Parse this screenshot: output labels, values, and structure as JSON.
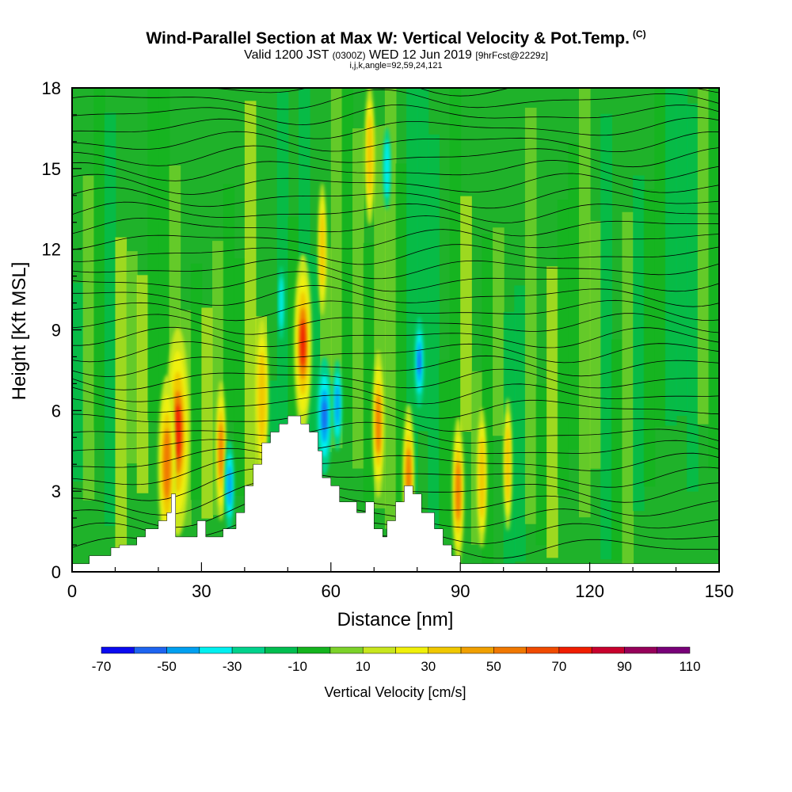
{
  "header": {
    "title": "Wind-Parallel Section at Max W: Vertical Velocity & Pot.Temp.",
    "copyright": "(C)",
    "subtitle_main": "Valid 1200 JST",
    "subtitle_utc": "(0300Z)",
    "subtitle_date": "WED 12 Jun 2019",
    "subtitle_fcst": "[9hrFcst@2229z]",
    "subtitle2": "i,j,k,angle=92,59,24,121"
  },
  "chart_data": {
    "type": "heatmap",
    "xlabel": "Distance [nm]",
    "ylabel": "Height [Kft MSL]",
    "xlim": [
      0,
      150
    ],
    "ylim": [
      0,
      18
    ],
    "xticks": [
      "0",
      "30",
      "60",
      "90",
      "120",
      "150"
    ],
    "yticks": [
      "0",
      "3",
      "6",
      "9",
      "12",
      "15",
      "18"
    ],
    "terrain": [
      [
        0,
        0.3
      ],
      [
        4,
        0.3
      ],
      [
        4,
        0.6
      ],
      [
        9,
        0.6
      ],
      [
        9,
        0.9
      ],
      [
        11,
        0.9
      ],
      [
        11,
        1.0
      ],
      [
        15,
        1.0
      ],
      [
        15,
        1.3
      ],
      [
        17,
        1.3
      ],
      [
        17,
        1.6
      ],
      [
        20,
        1.6
      ],
      [
        20,
        1.9
      ],
      [
        22,
        1.9
      ],
      [
        22,
        2.2
      ],
      [
        23,
        2.2
      ],
      [
        23,
        2.9
      ],
      [
        24,
        2.9
      ],
      [
        24,
        1.3
      ],
      [
        29,
        1.3
      ],
      [
        29,
        1.9
      ],
      [
        31,
        1.9
      ],
      [
        31,
        1.3
      ],
      [
        35,
        1.3
      ],
      [
        35,
        1.6
      ],
      [
        38,
        1.6
      ],
      [
        38,
        2.2
      ],
      [
        40,
        2.2
      ],
      [
        40,
        3.2
      ],
      [
        42,
        3.2
      ],
      [
        42,
        4.0
      ],
      [
        44,
        4.0
      ],
      [
        44,
        4.8
      ],
      [
        46,
        4.8
      ],
      [
        46,
        5.2
      ],
      [
        48,
        5.2
      ],
      [
        48,
        5.5
      ],
      [
        50,
        5.5
      ],
      [
        50,
        5.8
      ],
      [
        53,
        5.8
      ],
      [
        53,
        5.5
      ],
      [
        55,
        5.5
      ],
      [
        55,
        5.2
      ],
      [
        57,
        5.2
      ],
      [
        57,
        4.5
      ],
      [
        58,
        4.5
      ],
      [
        58,
        3.5
      ],
      [
        60,
        3.5
      ],
      [
        60,
        3.2
      ],
      [
        62,
        3.2
      ],
      [
        62,
        2.6
      ],
      [
        66,
        2.6
      ],
      [
        66,
        2.2
      ],
      [
        68,
        2.2
      ],
      [
        68,
        2.6
      ],
      [
        70,
        2.6
      ],
      [
        70,
        1.6
      ],
      [
        72,
        1.6
      ],
      [
        72,
        1.3
      ],
      [
        73,
        1.3
      ],
      [
        73,
        1.9
      ],
      [
        75,
        1.9
      ],
      [
        75,
        2.6
      ],
      [
        77,
        2.6
      ],
      [
        77,
        3.2
      ],
      [
        79,
        3.2
      ],
      [
        79,
        2.9
      ],
      [
        81,
        2.9
      ],
      [
        81,
        2.2
      ],
      [
        84,
        2.2
      ],
      [
        84,
        1.6
      ],
      [
        86,
        1.6
      ],
      [
        86,
        1.0
      ],
      [
        88,
        1.0
      ],
      [
        88,
        0.6
      ],
      [
        90,
        0.6
      ],
      [
        90,
        0.3
      ],
      [
        150,
        0.3
      ]
    ],
    "colorbar": {
      "label": "Vertical Velocity [cm/s]",
      "tick_labels": [
        "-70",
        "-50",
        "-30",
        "-10",
        "10",
        "30",
        "50",
        "70",
        "90",
        "110"
      ],
      "levels": [
        -70,
        -60,
        -50,
        -40,
        -30,
        -20,
        -10,
        0,
        10,
        20,
        30,
        40,
        50,
        60,
        70,
        80,
        90,
        100,
        110
      ],
      "colors": [
        "#0a0af0",
        "#1e64f0",
        "#00a0f0",
        "#00f0f0",
        "#00d28c",
        "#00be50",
        "#14b41e",
        "#7cd22a",
        "#c8e61e",
        "#f0f00a",
        "#f0c800",
        "#f0a000",
        "#f07800",
        "#f04b00",
        "#f01e00",
        "#c8002d",
        "#96005a",
        "#780078"
      ]
    },
    "updrafts": [
      {
        "x": 24.5,
        "y": 5.2,
        "w": 30,
        "level": 3
      },
      {
        "x": 22,
        "y": 4.0,
        "w": 22,
        "level": 2
      },
      {
        "x": 34.5,
        "y": 4.5,
        "w": 12,
        "level": 2
      },
      {
        "x": 44,
        "y": 6.5,
        "w": 16,
        "level": 1
      },
      {
        "x": 53.5,
        "y": 8.5,
        "w": 22,
        "level": 3
      },
      {
        "x": 58,
        "y": 12.0,
        "w": 10,
        "level": 1
      },
      {
        "x": 71,
        "y": 5.5,
        "w": 14,
        "level": 2
      },
      {
        "x": 78,
        "y": 3.5,
        "w": 14,
        "level": 2
      },
      {
        "x": 89.5,
        "y": 3.0,
        "w": 14,
        "level": 2
      },
      {
        "x": 95,
        "y": 3.5,
        "w": 12,
        "level": 1
      },
      {
        "x": 69,
        "y": 15.5,
        "w": 12,
        "level": 1
      },
      {
        "x": 101,
        "y": 4.0,
        "w": 10,
        "level": 1
      }
    ],
    "downdrafts": [
      {
        "x": 36.5,
        "y": 3.2,
        "w": 10,
        "level": 2
      },
      {
        "x": 58.5,
        "y": 5.8,
        "w": 16,
        "level": 3
      },
      {
        "x": 61.5,
        "y": 6.2,
        "w": 10,
        "level": 2
      },
      {
        "x": 80.5,
        "y": 7.8,
        "w": 10,
        "level": 3
      },
      {
        "x": 73,
        "y": 15.0,
        "w": 8,
        "level": 1
      },
      {
        "x": 48.5,
        "y": 10.0,
        "w": 6,
        "level": 1
      }
    ]
  }
}
